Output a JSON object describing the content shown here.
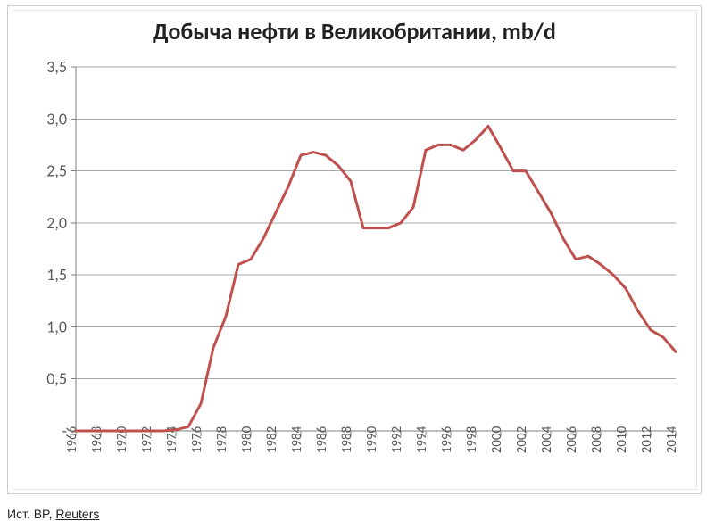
{
  "chart": {
    "type": "line",
    "title": "Добыча нефти в Великобритании, mb/d",
    "title_fontsize": 26,
    "title_color": "#222222",
    "background_color": "#ffffff",
    "frame_border_color": "#cfcfcf",
    "frame_inset_color": "#e7e7e7",
    "axis_color": "#808080",
    "grid_color": "#a8a8a8",
    "label_color": "#5a5a5a",
    "line_color": "#c0504d",
    "line_width": 3,
    "x_tick_rotate": 90,
    "x": [
      1966,
      1967,
      1968,
      1969,
      1970,
      1971,
      1972,
      1973,
      1974,
      1975,
      1976,
      1977,
      1978,
      1979,
      1980,
      1981,
      1982,
      1983,
      1984,
      1985,
      1986,
      1987,
      1988,
      1989,
      1990,
      1991,
      1992,
      1993,
      1994,
      1995,
      1996,
      1997,
      1998,
      1999,
      2000,
      2001,
      2002,
      2003,
      2004,
      2005,
      2006,
      2007,
      2008,
      2009,
      2010,
      2011,
      2012,
      2013,
      2014
    ],
    "y": [
      0.0,
      0.0,
      0.0,
      0.0,
      0.0,
      0.0,
      0.0,
      0.0,
      0.01,
      0.04,
      0.26,
      0.8,
      1.1,
      1.6,
      1.65,
      1.85,
      2.1,
      2.35,
      2.65,
      2.68,
      2.65,
      2.55,
      2.4,
      1.95,
      1.95,
      1.95,
      2.0,
      2.15,
      2.7,
      2.75,
      2.75,
      2.7,
      2.8,
      2.93,
      2.72,
      2.5,
      2.5,
      2.3,
      2.1,
      1.85,
      1.65,
      1.68,
      1.6,
      1.5,
      1.37,
      1.15,
      0.97,
      0.9,
      0.76
    ],
    "xlim": [
      1966,
      2014
    ],
    "ylim": [
      0,
      3.5
    ],
    "y_ticks": [
      0,
      0.5,
      1.0,
      1.5,
      2.0,
      2.5,
      3.0,
      3.5
    ],
    "y_tick_labels": [
      "-",
      "0,5",
      "1,0",
      "1,5",
      "2,0",
      "2,5",
      "3,0",
      "3,5"
    ],
    "x_ticks": [
      1966,
      1968,
      1970,
      1972,
      1974,
      1976,
      1978,
      1980,
      1982,
      1984,
      1986,
      1988,
      1990,
      1992,
      1994,
      1996,
      1998,
      2000,
      2002,
      2004,
      2006,
      2008,
      2010,
      2012,
      2014
    ],
    "label_fontsize_y": 18,
    "label_fontsize_x": 15,
    "tick_mark_len": 6
  },
  "source": {
    "prefix": "Ист. BP, ",
    "link_text": "Reuters"
  }
}
